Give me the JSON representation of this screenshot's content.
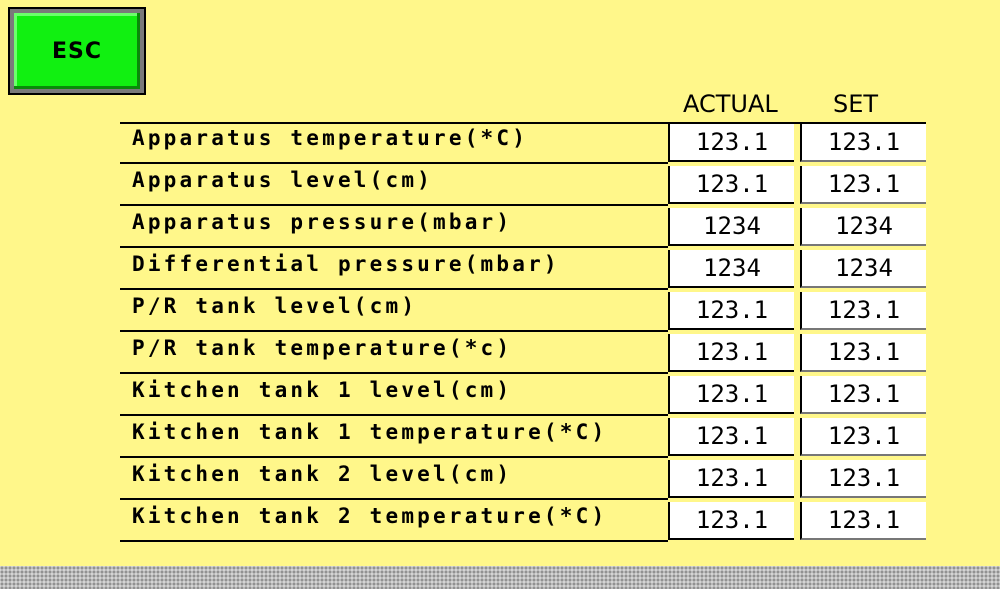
{
  "esc_label": "ESC",
  "headers": {
    "actual": "ACTUAL",
    "set": "SET"
  },
  "rows": [
    {
      "label": "Apparatus temperature(*C)",
      "actual": "123.1",
      "set": "123.1"
    },
    {
      "label": "Apparatus level(cm)",
      "actual": "123.1",
      "set": "123.1"
    },
    {
      "label": "Apparatus pressure(mbar)",
      "actual": "1234",
      "set": "1234"
    },
    {
      "label": "Differential pressure(mbar)",
      "actual": "1234",
      "set": "1234"
    },
    {
      "label": "P/R tank level(cm)",
      "actual": "123.1",
      "set": "123.1"
    },
    {
      "label": "P/R tank temperature(*c)",
      "actual": "123.1",
      "set": "123.1"
    },
    {
      "label": "Kitchen tank 1 level(cm)",
      "actual": "123.1",
      "set": "123.1"
    },
    {
      "label": "Kitchen tank 1 temperature(*C)",
      "actual": "123.1",
      "set": "123.1"
    },
    {
      "label": "Kitchen tank 2 level(cm)",
      "actual": "123.1",
      "set": "123.1"
    },
    {
      "label": "Kitchen tank 2 temperature(*C)",
      "actual": "123.1",
      "set": "123.1"
    }
  ],
  "colors": {
    "background": "#FFF78A",
    "esc_button": "#11F011",
    "field_background": "#FFFFFF"
  }
}
